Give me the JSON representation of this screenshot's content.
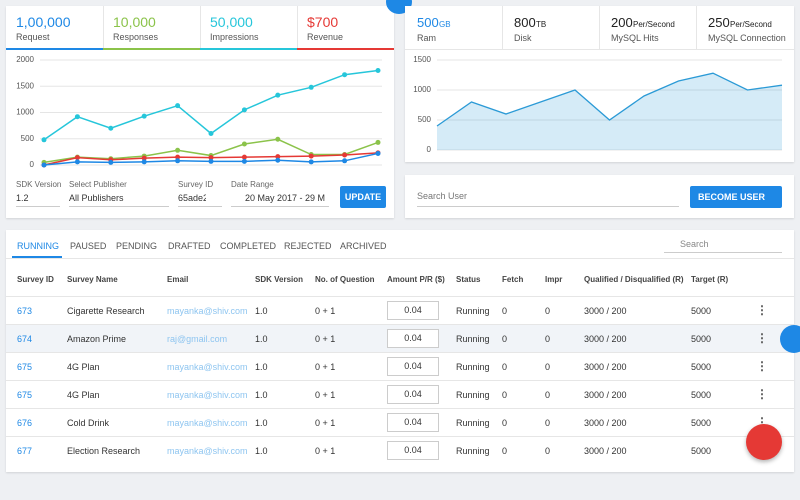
{
  "stats": [
    {
      "value": "1,00,000",
      "label": "Request",
      "color": "#1e88e5"
    },
    {
      "value": "10,000",
      "label": "Responses",
      "color": "#8bc34a"
    },
    {
      "value": "50,000",
      "label": "Impressions",
      "color": "#26c6da"
    },
    {
      "value": "$700",
      "label": "Revenue",
      "color": "#e53935"
    }
  ],
  "server_stats": [
    {
      "value": "500",
      "unit": "GB",
      "label": "Ram",
      "color": "#1e88e5"
    },
    {
      "value": "800",
      "unit": "TB",
      "label": "Disk",
      "color": "#222"
    },
    {
      "value": "200",
      "unit": "Per/Second",
      "label": "MySQL Hits",
      "color": "#222"
    },
    {
      "value": "250",
      "unit": "Per/Second",
      "label": "MySQL Connection",
      "color": "#222"
    }
  ],
  "chart_data": [
    {
      "type": "line",
      "ylim": [
        0,
        2000
      ],
      "yticks": [
        0,
        500,
        1000,
        1500,
        2000
      ],
      "grid": true,
      "series": [
        {
          "color": "#26c6da",
          "values": [
            480,
            920,
            700,
            930,
            1130,
            600,
            1050,
            1330,
            1480,
            1720,
            1800
          ]
        },
        {
          "color": "#8bc34a",
          "values": [
            50,
            150,
            120,
            170,
            280,
            180,
            400,
            490,
            200,
            200,
            430
          ]
        },
        {
          "color": "#e53935",
          "values": [
            0,
            140,
            100,
            130,
            150,
            140,
            150,
            160,
            170,
            190,
            230
          ]
        },
        {
          "color": "#1e88e5",
          "values": [
            0,
            60,
            50,
            60,
            80,
            70,
            70,
            90,
            60,
            80,
            220
          ]
        }
      ]
    },
    {
      "type": "area",
      "ylim": [
        0,
        1500
      ],
      "yticks": [
        0,
        500,
        1000,
        1500
      ],
      "grid": true,
      "color": "#2b9ad6",
      "values": [
        400,
        800,
        600,
        800,
        1000,
        500,
        900,
        1150,
        1280,
        1000,
        1080
      ]
    }
  ],
  "filters": [
    {
      "label": "SDK Version",
      "value": "1.2"
    },
    {
      "label": "Select Publisher",
      "value": "All Publishers"
    },
    {
      "label": "Survey ID",
      "value": "65ade2"
    },
    {
      "label": "Date Range",
      "value": "20 May 2017 - 29 M"
    }
  ],
  "update_button": "UPDATE",
  "search_user": "Search User",
  "become_user": "BECOME USER",
  "tabs": [
    "RUNNING",
    "PAUSED",
    "PENDING",
    "DRAFTED",
    "COMPLETED",
    "REJECTED",
    "ARCHIVED"
  ],
  "search": "Search",
  "table": {
    "columns": [
      "Survey ID",
      "Survey Name",
      "Email",
      "SDK Version",
      "No. of Question",
      "Amount P/R ($)",
      "Status",
      "Fetch",
      "Impr",
      "Qualified / Disqualified (R)",
      "Target (R)"
    ],
    "rows": [
      [
        "673",
        "Cigarette Research",
        "mayanka@shiv.com",
        "1.0",
        "0 + 1",
        "0.04",
        "Running",
        "0",
        "0",
        "3000 / 200",
        "5000"
      ],
      [
        "674",
        "Amazon Prime",
        "raj@gmail.com",
        "1.0",
        "0 + 1",
        "0.04",
        "Running",
        "0",
        "0",
        "3000 / 200",
        "5000"
      ],
      [
        "675",
        "4G Plan",
        "mayanka@shiv.com",
        "1.0",
        "0 + 1",
        "0.04",
        "Running",
        "0",
        "0",
        "3000 / 200",
        "5000"
      ],
      [
        "675",
        "4G Plan",
        "mayanka@shiv.com",
        "1.0",
        "0 + 1",
        "0.04",
        "Running",
        "0",
        "0",
        "3000 / 200",
        "5000"
      ],
      [
        "676",
        "Cold Drink",
        "mayanka@shiv.com",
        "1.0",
        "0 + 1",
        "0.04",
        "Running",
        "0",
        "0",
        "3000 / 200",
        "5000"
      ],
      [
        "677",
        "Election Research",
        "mayanka@shiv.com",
        "1.0",
        "0 + 1",
        "0.04",
        "Running",
        "0",
        "0",
        "3000 / 200",
        "5000"
      ]
    ]
  }
}
